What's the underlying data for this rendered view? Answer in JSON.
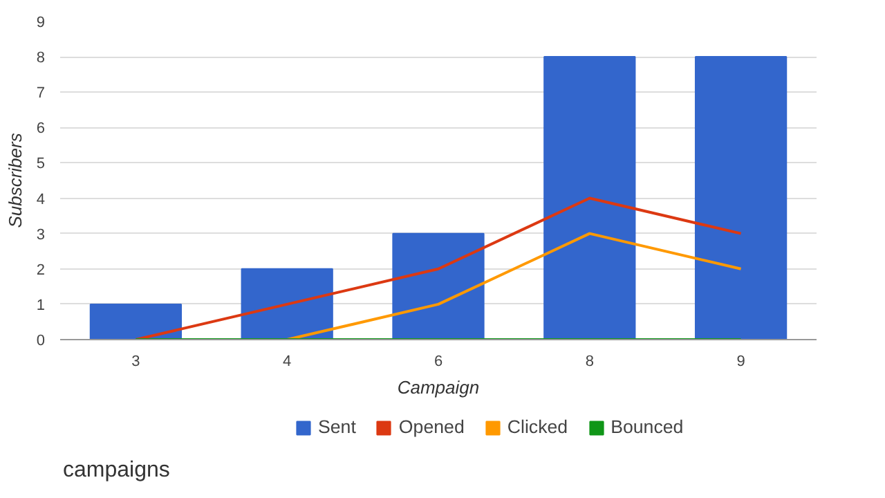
{
  "chart_data": {
    "type": "bar",
    "xlabel": "Campaign",
    "ylabel": "Subscribers",
    "categories": [
      "3",
      "4",
      "6",
      "8",
      "9"
    ],
    "series": [
      {
        "name": "Sent",
        "color": "#3366cc",
        "values": [
          1,
          2,
          3,
          8,
          8
        ]
      },
      {
        "name": "Opened",
        "type": "line",
        "color": "#dc3912",
        "values": [
          0,
          1,
          2,
          4,
          3
        ]
      },
      {
        "name": "Clicked",
        "type": "line",
        "color": "#ff9900",
        "values": [
          null,
          0,
          1,
          3,
          2
        ]
      },
      {
        "name": "Bounced",
        "type": "line",
        "color": "#109618",
        "values": [
          0,
          0,
          0,
          0,
          0
        ]
      }
    ],
    "ylim": [
      0,
      9
    ],
    "yticks": [
      0,
      1,
      2,
      3,
      4,
      5,
      6,
      7,
      8,
      9
    ],
    "grid": "y",
    "legend": "bottom",
    "annotations": [
      "campaigns"
    ]
  }
}
